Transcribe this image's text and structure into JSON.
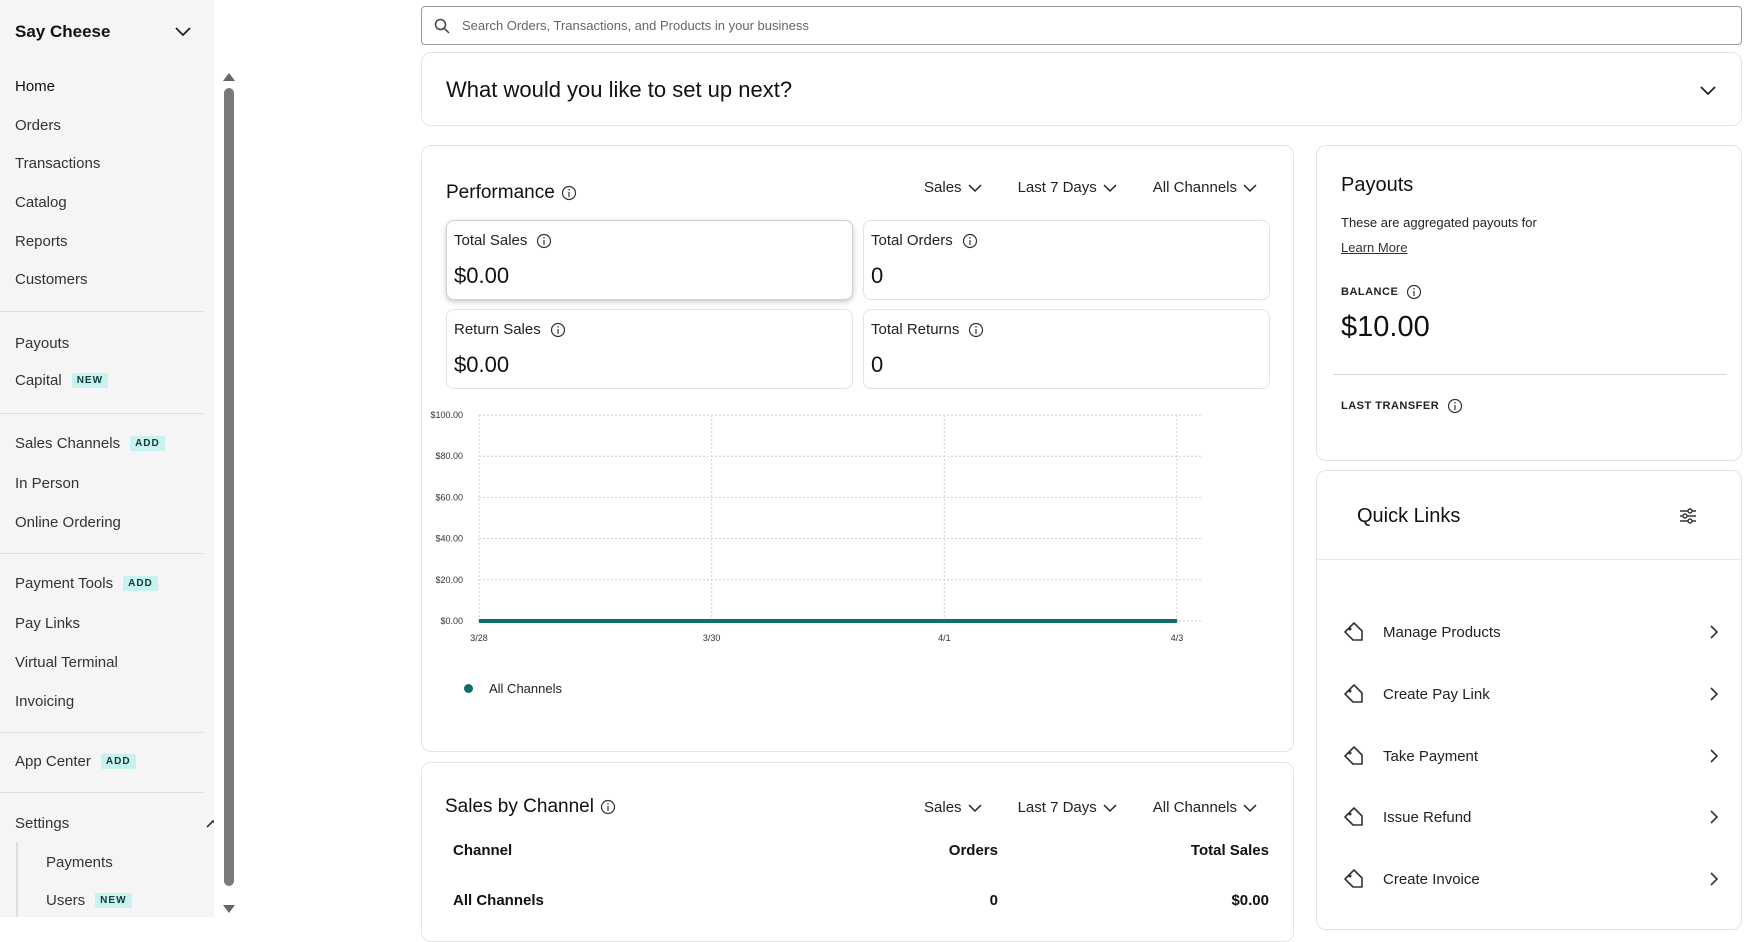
{
  "sidebar": {
    "business_name": "Say Cheese",
    "items": [
      {
        "label": "Home"
      },
      {
        "label": "Orders"
      },
      {
        "label": "Transactions"
      },
      {
        "label": "Catalog"
      },
      {
        "label": "Reports"
      },
      {
        "label": "Customers"
      },
      {
        "label": "Payouts"
      },
      {
        "label": "Capital",
        "badge": "NEW"
      },
      {
        "label": "Sales Channels",
        "badge": "ADD"
      },
      {
        "label": "In Person"
      },
      {
        "label": "Online Ordering"
      },
      {
        "label": "Payment Tools",
        "badge": "ADD"
      },
      {
        "label": "Pay Links"
      },
      {
        "label": "Virtual Terminal"
      },
      {
        "label": "Invoicing"
      },
      {
        "label": "App Center",
        "badge": "ADD"
      },
      {
        "label": "Settings"
      },
      {
        "label": "Payments"
      },
      {
        "label": "Users",
        "badge": "NEW"
      }
    ]
  },
  "search": {
    "placeholder": "Search Orders, Transactions, and Products in your business"
  },
  "setup": {
    "title": "What would you like to set up next?"
  },
  "performance": {
    "title": "Performance",
    "filters": {
      "metric": "Sales",
      "range": "Last 7 Days",
      "channel": "All Channels"
    },
    "metrics": [
      {
        "label": "Total Sales",
        "value": "$0.00"
      },
      {
        "label": "Total Orders",
        "value": "0"
      },
      {
        "label": "Return Sales",
        "value": "$0.00"
      },
      {
        "label": "Total Returns",
        "value": "0"
      }
    ]
  },
  "chart_data": {
    "type": "line",
    "x": [
      "3/28",
      "3/29",
      "3/30",
      "3/31",
      "4/1",
      "4/2",
      "4/3"
    ],
    "x_tick_labels": [
      "3/28",
      "3/30",
      "4/1",
      "4/3"
    ],
    "y_tick_labels": [
      "$0.00",
      "$20.00",
      "$40.00",
      "$60.00",
      "$80.00",
      "$100.00"
    ],
    "ylim": [
      0,
      100
    ],
    "series": [
      {
        "name": "All Channels",
        "values": [
          0,
          0,
          0,
          0,
          0,
          0,
          0
        ],
        "color": "#0f6e68"
      }
    ],
    "grid": true,
    "legend": "bottom-left"
  },
  "sales_by_channel": {
    "title": "Sales by Channel",
    "filters": {
      "metric": "Sales",
      "range": "Last 7 Days",
      "channel": "All Channels"
    },
    "columns": [
      "Channel",
      "Orders",
      "Total Sales"
    ],
    "rows": [
      {
        "channel": "All Channels",
        "orders": "0",
        "total": "$0.00"
      }
    ]
  },
  "payouts": {
    "title": "Payouts",
    "description": "These are aggregated payouts for",
    "learn_more": "Learn More",
    "balance_label": "BALANCE",
    "balance_value": "$10.00",
    "last_transfer_label": "LAST TRANSFER"
  },
  "quick_links": {
    "title": "Quick Links",
    "items": [
      {
        "label": "Manage Products"
      },
      {
        "label": "Create Pay Link"
      },
      {
        "label": "Take Payment"
      },
      {
        "label": "Issue Refund"
      },
      {
        "label": "Create Invoice"
      }
    ]
  },
  "colors": {
    "accent": "#0f6e68",
    "badge_bg": "#c8f2ef"
  }
}
